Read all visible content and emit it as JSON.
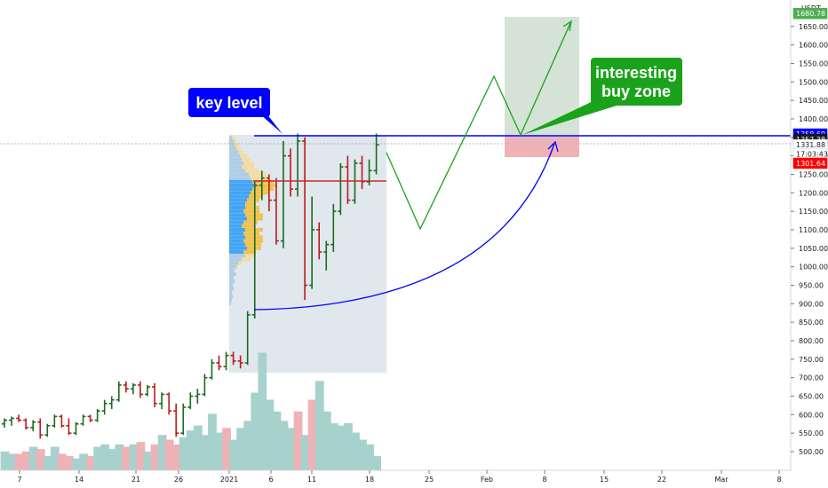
{
  "chart_data": {
    "type": "ohlc",
    "currency_label": "USDT",
    "y_axis": {
      "range": [
        470,
        1720
      ],
      "ticks": [
        500,
        550,
        600,
        650,
        700,
        750,
        800,
        850,
        900,
        950,
        1000,
        1050,
        1100,
        1150,
        1200,
        1250,
        1300,
        1350,
        1400,
        1450,
        1500,
        1550,
        1600,
        1650
      ]
    },
    "x_axis": {
      "tick_labels": [
        "7",
        "14",
        "21",
        "26",
        "2021",
        "6",
        "11",
        "18",
        "25",
        "Feb",
        "8",
        "15",
        "22",
        "Mar",
        "8"
      ]
    },
    "price_tags": [
      {
        "label": "1680.78",
        "bg": "#4caf50",
        "fg": "#ffffff",
        "value": 1685
      },
      {
        "label": "1358.69",
        "bg": "#0000ff",
        "fg": "#ffffff",
        "value": 1359
      },
      {
        "label": "1357.38",
        "bg": "#131722",
        "fg": "#ffffff",
        "value": 1345
      },
      {
        "label": "1331.88",
        "bg": "#ffffff",
        "fg": "#131722",
        "value": 1330
      },
      {
        "label": "17:03:43",
        "bg": "#ffffff",
        "fg": "#131722",
        "value": 1305
      },
      {
        "label": "1301.64",
        "bg": "#ff0000",
        "fg": "#ffffff",
        "value": 1280
      }
    ],
    "key_level": 1359,
    "annotations": [
      {
        "name": "key-level-callout",
        "text": "key level",
        "color": "#0000ff"
      },
      {
        "name": "buy-zone-callout",
        "lines": [
          "interesting",
          "buy zone"
        ],
        "color": "#1aa31a"
      }
    ],
    "colors": {
      "up": "#1b6b20",
      "down": "#b71c1c",
      "vol_up": "#a7d1cd",
      "vol_down": "#efb2b6",
      "projection": "#1aa31a",
      "key_line": "#0000ff"
    },
    "bars": [
      [
        575,
        590,
        565,
        585
      ],
      [
        585,
        595,
        570,
        590
      ],
      [
        590,
        600,
        580,
        585
      ],
      [
        585,
        590,
        560,
        565
      ],
      [
        565,
        585,
        555,
        580
      ],
      [
        580,
        590,
        535,
        545
      ],
      [
        545,
        575,
        540,
        570
      ],
      [
        570,
        600,
        565,
        595
      ],
      [
        595,
        600,
        565,
        570
      ],
      [
        570,
        590,
        545,
        550
      ],
      [
        550,
        580,
        545,
        575
      ],
      [
        575,
        600,
        570,
        595
      ],
      [
        595,
        600,
        580,
        585
      ],
      [
        585,
        615,
        580,
        610
      ],
      [
        610,
        640,
        600,
        630
      ],
      [
        630,
        650,
        615,
        640
      ],
      [
        640,
        690,
        635,
        680
      ],
      [
        680,
        690,
        660,
        670
      ],
      [
        670,
        685,
        655,
        680
      ],
      [
        680,
        690,
        645,
        655
      ],
      [
        655,
        680,
        650,
        675
      ],
      [
        675,
        685,
        620,
        630
      ],
      [
        630,
        660,
        615,
        655
      ],
      [
        655,
        660,
        600,
        610
      ],
      [
        610,
        630,
        540,
        550
      ],
      [
        550,
        630,
        545,
        620
      ],
      [
        620,
        660,
        615,
        650
      ],
      [
        650,
        670,
        630,
        655
      ],
      [
        655,
        710,
        650,
        700
      ],
      [
        700,
        750,
        695,
        740
      ],
      [
        740,
        760,
        720,
        730
      ],
      [
        730,
        770,
        720,
        760
      ],
      [
        760,
        770,
        735,
        745
      ],
      [
        745,
        760,
        725,
        740
      ],
      [
        740,
        880,
        735,
        870
      ],
      [
        870,
        1230,
        860,
        1220
      ],
      [
        1220,
        1260,
        1180,
        1240
      ],
      [
        1240,
        1250,
        1150,
        1180
      ],
      [
        1180,
        1240,
        1060,
        1070
      ],
      [
        1070,
        1340,
        1050,
        1300
      ],
      [
        1300,
        1320,
        1190,
        1210
      ],
      [
        1210,
        1360,
        1190,
        1340
      ],
      [
        1340,
        1350,
        910,
        950
      ],
      [
        950,
        1190,
        940,
        1100
      ],
      [
        1100,
        1120,
        1020,
        1040
      ],
      [
        1040,
        1070,
        990,
        1060
      ],
      [
        1060,
        1170,
        1040,
        1150
      ],
      [
        1150,
        1280,
        1140,
        1270
      ],
      [
        1270,
        1300,
        1170,
        1180
      ],
      [
        1180,
        1290,
        1170,
        1280
      ],
      [
        1280,
        1300,
        1210,
        1230
      ],
      [
        1230,
        1290,
        1220,
        1260
      ],
      [
        1260,
        1360,
        1250,
        1330
      ]
    ],
    "volume": [
      [
        8,
        1
      ],
      [
        7,
        1
      ],
      [
        7,
        0
      ],
      [
        8,
        0
      ],
      [
        10,
        1
      ],
      [
        9,
        0
      ],
      [
        6,
        1
      ],
      [
        10,
        1
      ],
      [
        7,
        0
      ],
      [
        6,
        0
      ],
      [
        5,
        1
      ],
      [
        7,
        1
      ],
      [
        6,
        0
      ],
      [
        10,
        1
      ],
      [
        11,
        1
      ],
      [
        9,
        1
      ],
      [
        11,
        1
      ],
      [
        10,
        0
      ],
      [
        11,
        1
      ],
      [
        12,
        0
      ],
      [
        8,
        1
      ],
      [
        11,
        0
      ],
      [
        15,
        1
      ],
      [
        13,
        0
      ],
      [
        11,
        0
      ],
      [
        14,
        1
      ],
      [
        17,
        1
      ],
      [
        19,
        1
      ],
      [
        15,
        1
      ],
      [
        24,
        1
      ],
      [
        16,
        1
      ],
      [
        18,
        0
      ],
      [
        13,
        1
      ],
      [
        18,
        1
      ],
      [
        21,
        1
      ],
      [
        33,
        1
      ],
      [
        50,
        1
      ],
      [
        30,
        1
      ],
      [
        25,
        1
      ],
      [
        21,
        1
      ],
      [
        18,
        1
      ],
      [
        25,
        0
      ],
      [
        15,
        1
      ],
      [
        30,
        0
      ],
      [
        38,
        1
      ],
      [
        25,
        1
      ],
      [
        20,
        1
      ],
      [
        19,
        1
      ],
      [
        20,
        1
      ],
      [
        16,
        1
      ],
      [
        13,
        1
      ],
      [
        11,
        1
      ],
      [
        6,
        1
      ]
    ]
  }
}
